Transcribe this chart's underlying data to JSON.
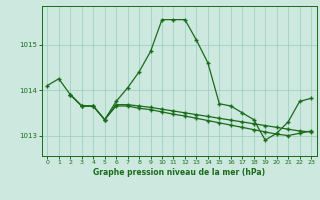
{
  "line1_x": [
    0,
    1,
    2,
    3,
    4,
    5,
    6,
    7,
    8,
    9,
    10,
    11,
    12,
    13,
    14,
    15,
    16,
    17,
    18,
    19,
    20,
    21,
    22,
    23
  ],
  "line1_y": [
    1014.1,
    1014.25,
    1013.9,
    1013.65,
    1013.65,
    1013.35,
    1013.75,
    1014.05,
    1014.4,
    1014.85,
    1015.55,
    1015.55,
    1015.55,
    1015.1,
    1014.6,
    1013.7,
    1013.65,
    1013.5,
    1013.35,
    1012.9,
    1013.05,
    1013.3,
    1013.75,
    1013.82
  ],
  "line2_x": [
    2,
    3,
    4,
    5,
    6,
    7,
    8,
    9,
    10,
    11,
    12,
    13,
    14,
    15,
    16,
    17,
    18,
    19,
    20,
    21,
    22,
    23
  ],
  "line2_y": [
    1013.9,
    1013.65,
    1013.65,
    1013.35,
    1013.65,
    1013.65,
    1013.6,
    1013.57,
    1013.52,
    1013.47,
    1013.43,
    1013.38,
    1013.33,
    1013.28,
    1013.23,
    1013.18,
    1013.13,
    1013.08,
    1013.03,
    1013.0,
    1013.05,
    1013.1
  ],
  "line3_x": [
    2,
    3,
    4,
    5,
    6,
    7,
    8,
    9,
    10,
    11,
    12,
    13,
    14,
    15,
    16,
    17,
    18,
    19,
    20,
    21,
    22,
    23
  ],
  "line3_y": [
    1013.9,
    1013.65,
    1013.65,
    1013.35,
    1013.68,
    1013.68,
    1013.65,
    1013.62,
    1013.58,
    1013.54,
    1013.5,
    1013.46,
    1013.42,
    1013.38,
    1013.34,
    1013.3,
    1013.26,
    1013.22,
    1013.18,
    1013.14,
    1013.1,
    1013.08
  ],
  "line_color": "#1a6b1a",
  "bg_color": "#cce8df",
  "grid_color": "#99ccbb",
  "xlabel": "Graphe pression niveau de la mer (hPa)",
  "yticks": [
    1013,
    1014,
    1015
  ],
  "xtick_labels": [
    "0",
    "1",
    "2",
    "3",
    "4",
    "5",
    "6",
    "7",
    "8",
    "9",
    "10",
    "11",
    "12",
    "13",
    "14",
    "15",
    "16",
    "17",
    "18",
    "19",
    "20",
    "21",
    "22",
    "23"
  ],
  "xticks": [
    0,
    1,
    2,
    3,
    4,
    5,
    6,
    7,
    8,
    9,
    10,
    11,
    12,
    13,
    14,
    15,
    16,
    17,
    18,
    19,
    20,
    21,
    22,
    23
  ],
  "ylim": [
    1012.55,
    1015.85
  ],
  "xlim": [
    -0.5,
    23.5
  ]
}
